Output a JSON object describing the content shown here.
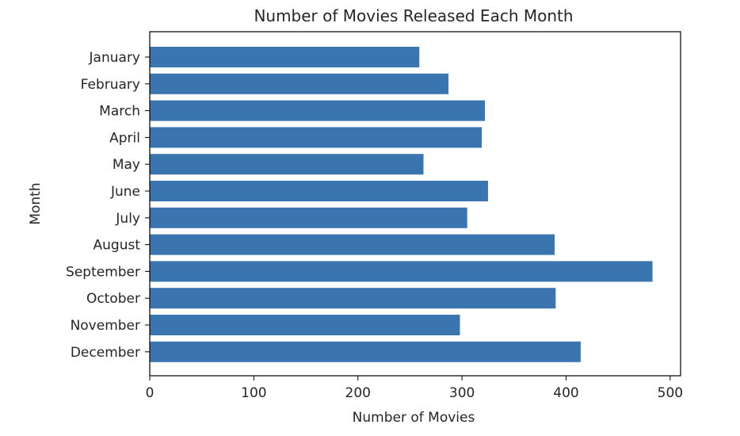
{
  "chart_data": {
    "type": "bar",
    "orientation": "horizontal",
    "title": "Number of Movies Released Each Month",
    "xlabel": "Number of Movies",
    "ylabel": "Month",
    "categories": [
      "January",
      "February",
      "March",
      "April",
      "May",
      "June",
      "July",
      "August",
      "September",
      "October",
      "November",
      "December"
    ],
    "values": [
      259,
      287,
      322,
      319,
      263,
      325,
      305,
      389,
      483,
      390,
      298,
      414
    ],
    "xlim": [
      0,
      510
    ],
    "xticks": [
      0,
      100,
      200,
      300,
      400,
      500
    ],
    "bar_color": "#3a75b0",
    "grid": false,
    "legend": "none"
  }
}
